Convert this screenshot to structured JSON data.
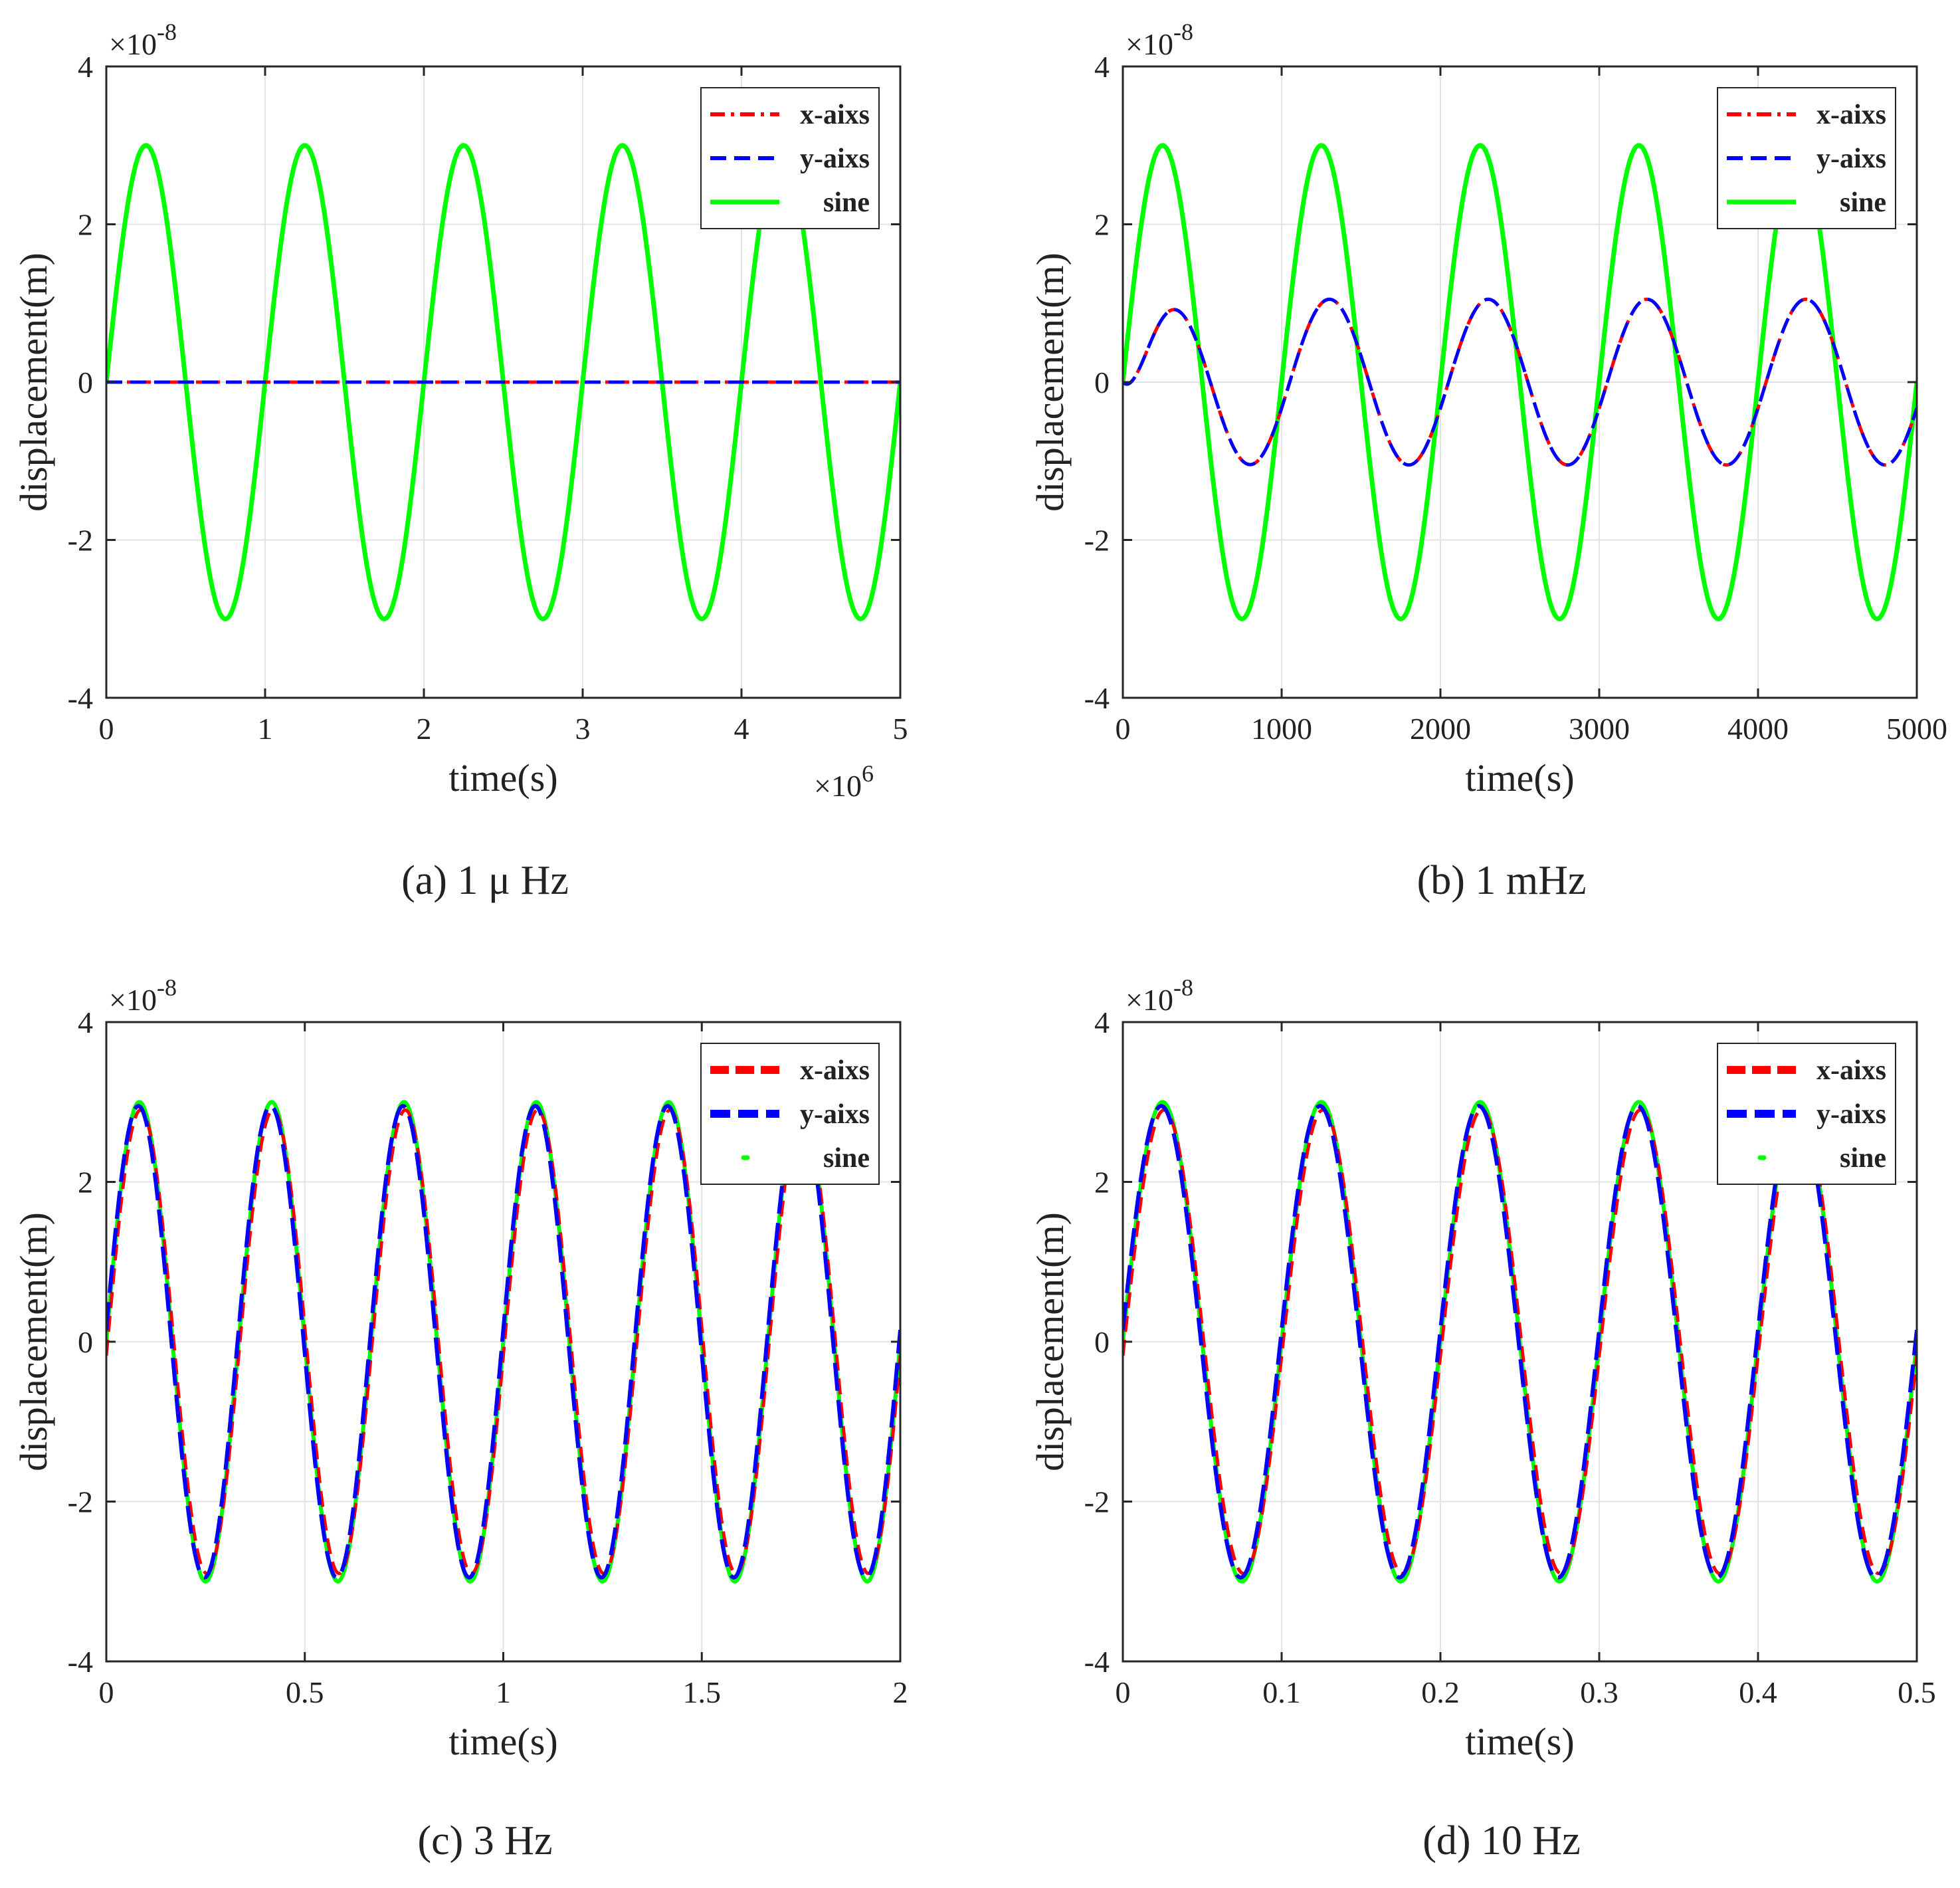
{
  "chart_data": [
    {
      "type": "line",
      "panel": "a",
      "caption": "(a) 1 μ Hz",
      "xlabel": "time(s)",
      "ylabel": "displacement(m)",
      "y_exponent_label": "×10",
      "y_exponent": "-8",
      "x_exponent_label": "×10",
      "x_exponent": "6",
      "xlim": [
        0,
        5
      ],
      "ylim": [
        -4,
        4
      ],
      "xticks": [
        0,
        1,
        2,
        3,
        4,
        5
      ],
      "xtick_labels": [
        "0",
        "1",
        "2",
        "3",
        "4",
        "5"
      ],
      "yticks": [
        -4,
        -2,
        0,
        2,
        4
      ],
      "ytick_labels": [
        "-4",
        "-2",
        "0",
        "2",
        "4"
      ],
      "grid": true,
      "legend_position": "top-right",
      "series": [
        {
          "name": "x-aixs",
          "color": "#ff0000",
          "style": "dash-dot",
          "amplitude": 0,
          "frequency": 1,
          "phase_shift": 0
        },
        {
          "name": "y-aixs",
          "color": "#0000ff",
          "style": "dashed",
          "amplitude": 0,
          "frequency": 1,
          "phase_shift": 0
        },
        {
          "name": "sine",
          "color": "#00ff00",
          "style": "solid",
          "amplitude": 3,
          "frequency": 1,
          "phase_shift": 0
        }
      ]
    },
    {
      "type": "line",
      "panel": "b",
      "caption": "(b) 1 mHz",
      "xlabel": "time(s)",
      "ylabel": "displacement(m)",
      "y_exponent_label": "×10",
      "y_exponent": "-8",
      "xlim": [
        0,
        5000
      ],
      "ylim": [
        -4,
        4
      ],
      "xticks": [
        0,
        1000,
        2000,
        3000,
        4000,
        5000
      ],
      "xtick_labels": [
        "0",
        "1000",
        "2000",
        "3000",
        "4000",
        "5000"
      ],
      "yticks": [
        -4,
        -2,
        0,
        2,
        4
      ],
      "ytick_labels": [
        "-4",
        "-2",
        "0",
        "2",
        "4"
      ],
      "grid": true,
      "legend_position": "top-right",
      "series": [
        {
          "name": "x-aixs",
          "color": "#ff0000",
          "style": "dash-dot",
          "amplitude": 1.05,
          "frequency": 0.001,
          "phase_shift": 0.2,
          "transient": true
        },
        {
          "name": "y-aixs",
          "color": "#0000ff",
          "style": "dashed",
          "amplitude": 1.05,
          "frequency": 0.001,
          "phase_shift": 0.2,
          "transient": true
        },
        {
          "name": "sine",
          "color": "#00ff00",
          "style": "solid",
          "amplitude": 3,
          "frequency": 0.001,
          "phase_shift": 0
        }
      ]
    },
    {
      "type": "line",
      "panel": "c",
      "caption": "(c) 3 Hz",
      "xlabel": "time(s)",
      "ylabel": "displacement(m)",
      "y_exponent_label": "×10",
      "y_exponent": "-8",
      "xlim": [
        0,
        2
      ],
      "ylim": [
        -4,
        4
      ],
      "xticks": [
        0,
        0.5,
        1,
        1.5,
        2
      ],
      "xtick_labels": [
        "0",
        "0.5",
        "1",
        "1.5",
        "2"
      ],
      "yticks": [
        -4,
        -2,
        0,
        2,
        4
      ],
      "ytick_labels": [
        "-4",
        "-2",
        "0",
        "2",
        "4"
      ],
      "grid": true,
      "legend_position": "top-right",
      "series": [
        {
          "name": "x-aixs",
          "color": "#ff0000",
          "style": "dashed",
          "amplitude": 2.9,
          "frequency": 3,
          "phase_shift": -0.06
        },
        {
          "name": "y-aixs",
          "color": "#0000ff",
          "style": "long-dash",
          "amplitude": 2.95,
          "frequency": 3,
          "phase_shift": 0.05
        },
        {
          "name": "sine",
          "color": "#00ff00",
          "style": "dotted",
          "amplitude": 3,
          "frequency": 3,
          "phase_shift": 0
        }
      ]
    },
    {
      "type": "line",
      "panel": "d",
      "caption": "(d) 10 Hz",
      "xlabel": "time(s)",
      "ylabel": "displacement(m)",
      "y_exponent_label": "×10",
      "y_exponent": "-8",
      "xlim": [
        0,
        0.5
      ],
      "ylim": [
        -4,
        4
      ],
      "xticks": [
        0,
        0.1,
        0.2,
        0.3,
        0.4,
        0.5
      ],
      "xtick_labels": [
        "0",
        "0.1",
        "0.2",
        "0.3",
        "0.4",
        "0.5"
      ],
      "yticks": [
        -4,
        -2,
        0,
        2,
        4
      ],
      "ytick_labels": [
        "-4",
        "-2",
        "0",
        "2",
        "4"
      ],
      "grid": true,
      "legend_position": "top-right",
      "series": [
        {
          "name": "x-aixs",
          "color": "#ff0000",
          "style": "dashed",
          "amplitude": 2.9,
          "frequency": 10,
          "phase_shift": -0.06
        },
        {
          "name": "y-aixs",
          "color": "#0000ff",
          "style": "long-dash",
          "amplitude": 2.95,
          "frequency": 10,
          "phase_shift": 0.05
        },
        {
          "name": "sine",
          "color": "#00ff00",
          "style": "dotted",
          "amplitude": 3,
          "frequency": 10,
          "phase_shift": 0
        }
      ]
    }
  ]
}
